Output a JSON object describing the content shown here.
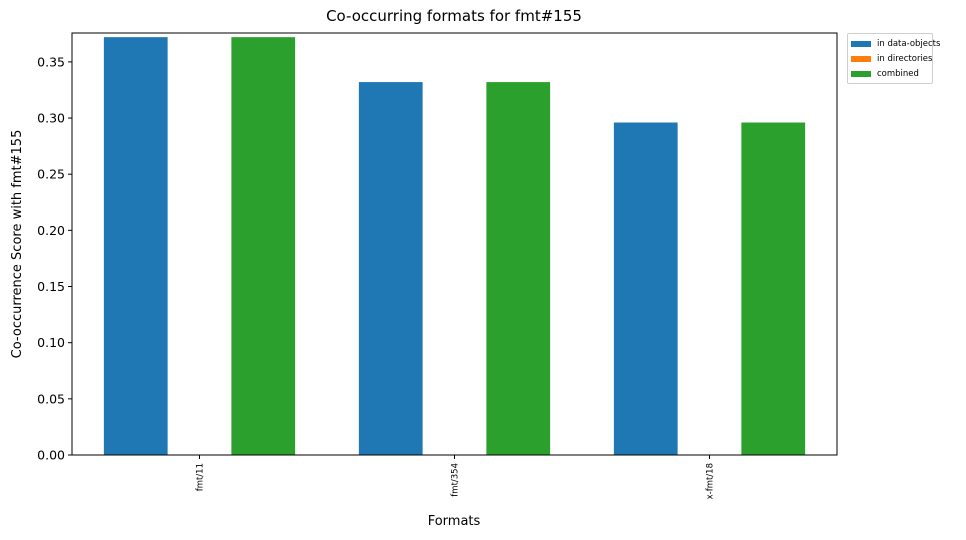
{
  "chart_data": {
    "type": "bar",
    "title": "Co-occurring formats for fmt#155",
    "xlabel": "Formats",
    "ylabel": "Co-occurrence Score with fmt#155",
    "categories": [
      "fmt/11",
      "fmt/354",
      "x-fmt/18"
    ],
    "series": [
      {
        "name": "in data-objects",
        "color": "#1f77b4",
        "values": [
          0.372,
          0.332,
          0.296
        ]
      },
      {
        "name": "in directories",
        "color": "#ff7f0e",
        "values": [
          0,
          0,
          0
        ]
      },
      {
        "name": "combined",
        "color": "#2ca02c",
        "values": [
          0.372,
          0.332,
          0.296
        ]
      }
    ],
    "ylim": [
      0,
      0.3757
    ],
    "yticks": [
      "0.00",
      "0.05",
      "0.10",
      "0.15",
      "0.20",
      "0.25",
      "0.30",
      "0.35"
    ],
    "legend_position": "outside top-right",
    "grid": false
  }
}
